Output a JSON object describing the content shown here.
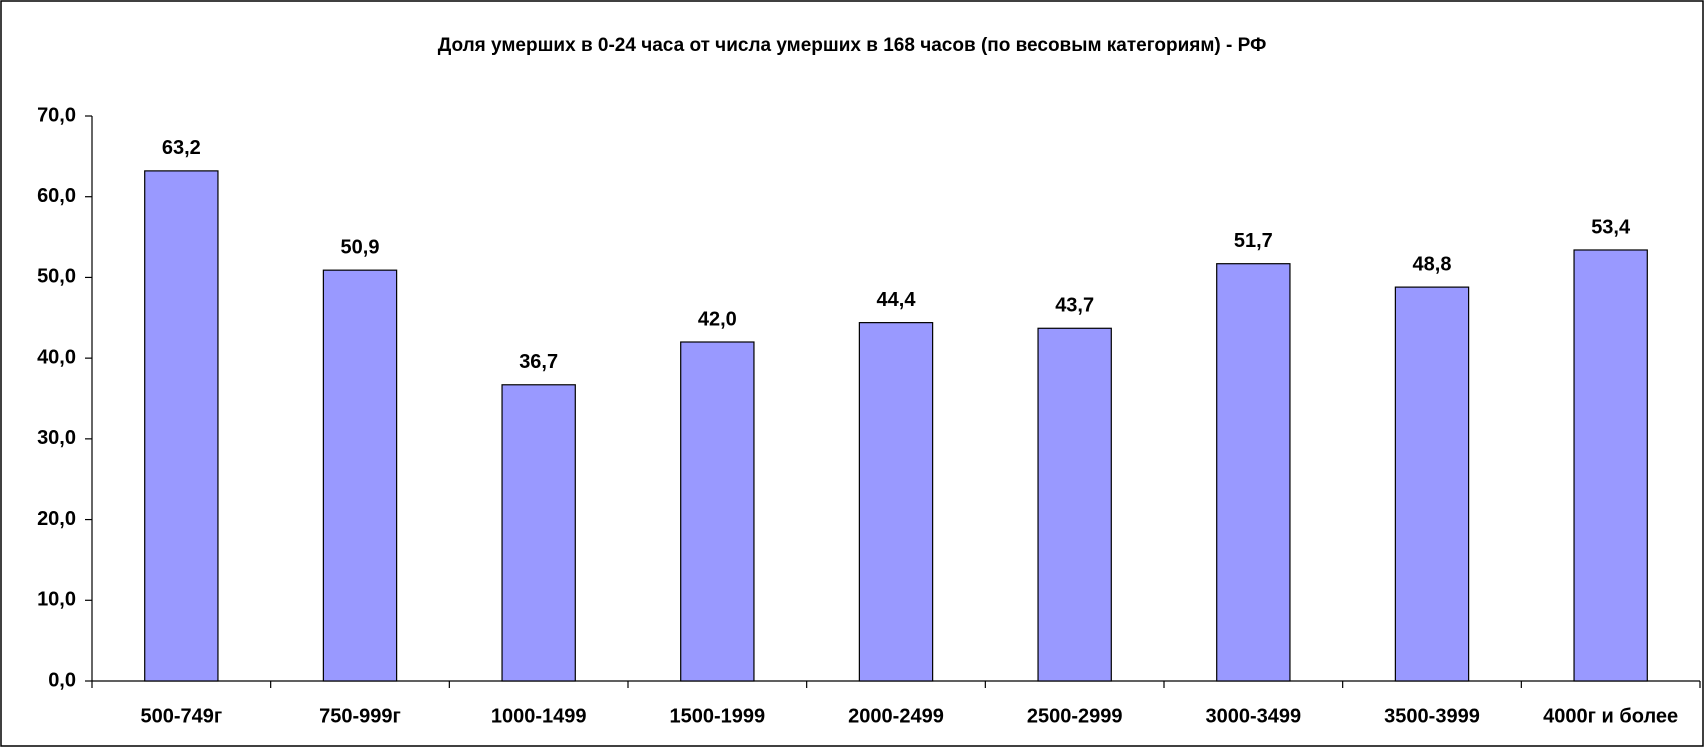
{
  "chart_data": {
    "type": "bar",
    "title": "Доля умерших в  0-24  часа от числа умерших в 168 часов (по весовым категориям) - РФ",
    "categories": [
      "500-749г",
      "750-999г",
      "1000-1499",
      "1500-1999",
      "2000-2499",
      "2500-2999",
      "3000-3499",
      "3500-3999",
      "4000г и более"
    ],
    "values": [
      63.2,
      50.9,
      36.7,
      42.0,
      44.4,
      43.7,
      51.7,
      48.8,
      53.4
    ],
    "value_labels": [
      "63,2",
      "50,9",
      "36,7",
      "42,0",
      "44,4",
      "43,7",
      "51,7",
      "48,8",
      "53,4"
    ],
    "color": "#9999ff",
    "ylim": [
      0,
      70
    ],
    "yticks": [
      {
        "value": 0,
        "label": "0,0"
      },
      {
        "value": 10,
        "label": "10,0"
      },
      {
        "value": 20,
        "label": "20,0"
      },
      {
        "value": 30,
        "label": "30,0"
      },
      {
        "value": 40,
        "label": "40,0"
      },
      {
        "value": 50,
        "label": "50,0"
      },
      {
        "value": 60,
        "label": "60,0"
      },
      {
        "value": 70,
        "label": "70,0"
      }
    ],
    "grid": false
  }
}
